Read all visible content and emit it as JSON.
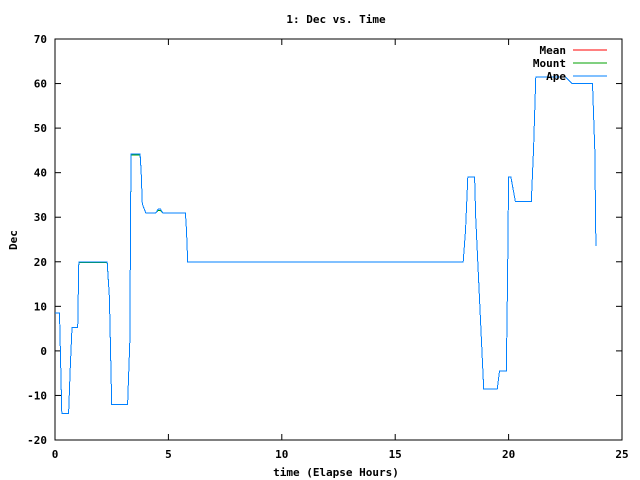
{
  "chart_data": {
    "type": "line",
    "title": "1: Dec vs. Time",
    "xlabel": "time (Elapse Hours)",
    "ylabel": "Dec",
    "xlim": [
      0,
      25
    ],
    "ylim": [
      -20,
      70
    ],
    "xticks": [
      0,
      5,
      10,
      15,
      20,
      25
    ],
    "yticks": [
      -20,
      -10,
      0,
      10,
      20,
      30,
      40,
      50,
      60,
      70
    ],
    "grid": false,
    "legend_position": "top-right",
    "series": [
      {
        "name": "Mean",
        "color": "#ff0000",
        "x": [
          0,
          0.2,
          0.3,
          0.35,
          0.6,
          0.68,
          0.75,
          1.0,
          1.05,
          2.3,
          2.4,
          2.5,
          3.2,
          3.3,
          3.35,
          3.75,
          3.8,
          3.85,
          4.0,
          4.45,
          4.55,
          4.65,
          4.75,
          5.75,
          5.8,
          5.85,
          18.0,
          18.1,
          18.2,
          18.5,
          18.55,
          18.9,
          19.5,
          19.6,
          19.9,
          19.95,
          20.0,
          20.1,
          20.3,
          20.35,
          21.0,
          21.1,
          21.2,
          22.5,
          22.6,
          22.8,
          23.7,
          23.8,
          23.85
        ],
        "values": [
          8.5,
          8.5,
          -14,
          -14,
          -14,
          -3,
          5.3,
          5.3,
          20,
          20,
          12,
          -12,
          -12,
          2,
          44.2,
          44.2,
          40,
          33,
          31,
          31,
          31.8,
          31.8,
          31,
          31,
          27,
          20,
          20,
          27,
          39,
          39,
          30,
          -8.5,
          -8.5,
          -4.5,
          -4.5,
          15,
          39,
          39,
          33.5,
          33.5,
          33.5,
          45,
          61.5,
          61.5,
          61,
          60,
          60,
          45,
          23.5
        ]
      },
      {
        "name": "Mount",
        "color": "#00a000",
        "x": [
          0,
          0.2,
          0.3,
          0.35,
          0.6,
          0.68,
          0.75,
          1.0,
          1.05,
          2.3,
          2.4,
          2.5,
          3.2,
          3.3,
          3.35,
          3.75,
          3.8,
          3.85,
          4.0,
          4.45,
          4.55,
          4.65,
          4.75,
          5.75,
          5.8,
          5.85,
          18.0,
          18.1,
          18.2,
          18.5,
          18.55,
          18.9,
          19.5,
          19.6,
          19.9,
          19.95,
          20.0,
          20.1,
          20.3,
          20.35,
          21.0,
          21.1,
          21.2,
          22.5,
          22.6,
          22.8,
          23.7,
          23.8,
          23.85
        ],
        "values": [
          8.5,
          8.5,
          -14,
          -14,
          -14,
          -3,
          5.2,
          5.2,
          19.8,
          19.8,
          12,
          -12,
          -12,
          2,
          44.0,
          44.0,
          40,
          33,
          31,
          31,
          31.5,
          31.5,
          31,
          31,
          27,
          20,
          20,
          27,
          39,
          39,
          30,
          -8.5,
          -8.5,
          -4.5,
          -4.5,
          15,
          39,
          39,
          33.5,
          33.5,
          33.5,
          45,
          61.5,
          61.5,
          61,
          60,
          60,
          45,
          23.5
        ]
      },
      {
        "name": "Ape",
        "color": "#0080ff",
        "x": [
          0,
          0.2,
          0.3,
          0.35,
          0.6,
          0.68,
          0.75,
          1.0,
          1.05,
          2.3,
          2.4,
          2.5,
          3.2,
          3.3,
          3.35,
          3.75,
          3.8,
          3.85,
          4.0,
          4.45,
          4.55,
          4.65,
          4.75,
          5.75,
          5.8,
          5.85,
          18.0,
          18.1,
          18.2,
          18.5,
          18.55,
          18.9,
          19.5,
          19.6,
          19.9,
          19.95,
          20.0,
          20.1,
          20.3,
          20.35,
          21.0,
          21.1,
          21.2,
          22.5,
          22.6,
          22.8,
          23.7,
          23.8,
          23.85
        ],
        "values": [
          8.5,
          8.5,
          -14,
          -14,
          -14,
          -3,
          5.3,
          5.3,
          20,
          20,
          12,
          -12,
          -12,
          2,
          44.2,
          44.2,
          40,
          33,
          31,
          31,
          31.8,
          31.8,
          31,
          31,
          27,
          20,
          20,
          27,
          39,
          39,
          30,
          -8.5,
          -8.5,
          -4.5,
          -4.5,
          15,
          39,
          39,
          33.5,
          33.5,
          33.5,
          45,
          61.5,
          61.5,
          61,
          60,
          60,
          45,
          23.5
        ]
      }
    ]
  }
}
